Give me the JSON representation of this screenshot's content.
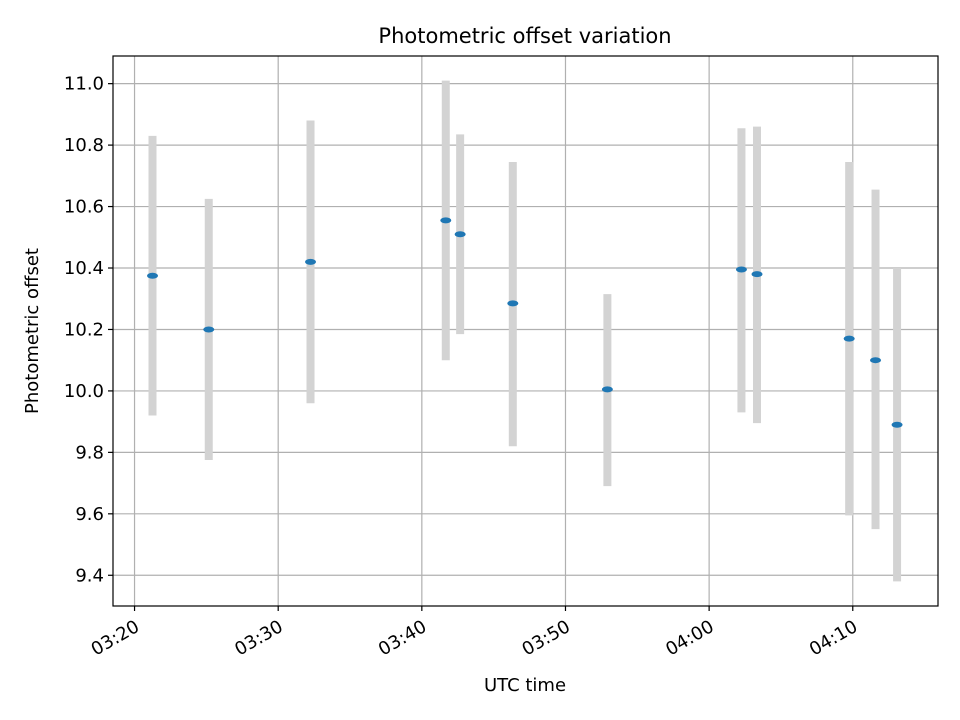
{
  "chart_data": {
    "type": "scatter",
    "title": "Photometric offset variation",
    "xlabel": "UTC time",
    "ylabel": "Photometric offset",
    "x_ticks": [
      "03:20",
      "03:30",
      "03:40",
      "03:50",
      "04:00",
      "04:10"
    ],
    "y_ticks": [
      "9.4",
      "9.6",
      "9.8",
      "10.0",
      "10.2",
      "10.4",
      "10.6",
      "10.8",
      "11.0"
    ],
    "xlim": [
      "03:18:30",
      "04:15:56"
    ],
    "ylim": [
      9.3,
      11.09
    ],
    "grid": true,
    "errorbar_color": "#d3d3d3",
    "marker_color": "#1f77b4",
    "points": [
      {
        "x": "03:21:15",
        "y": 10.375,
        "low": 9.92,
        "high": 10.83
      },
      {
        "x": "03:25:10",
        "y": 10.2,
        "low": 9.775,
        "high": 10.625
      },
      {
        "x": "03:32:15",
        "y": 10.42,
        "low": 9.96,
        "high": 10.88
      },
      {
        "x": "03:41:40",
        "y": 10.555,
        "low": 10.1,
        "high": 11.01
      },
      {
        "x": "03:42:40",
        "y": 10.51,
        "low": 10.185,
        "high": 10.835
      },
      {
        "x": "03:46:20",
        "y": 10.285,
        "low": 9.82,
        "high": 10.745
      },
      {
        "x": "03:52:55",
        "y": 10.005,
        "low": 9.69,
        "high": 10.315
      },
      {
        "x": "04:02:15",
        "y": 10.395,
        "low": 9.93,
        "high": 10.855
      },
      {
        "x": "04:03:20",
        "y": 10.38,
        "low": 9.895,
        "high": 10.86
      },
      {
        "x": "04:09:45",
        "y": 10.17,
        "low": 9.595,
        "high": 10.745
      },
      {
        "x": "04:11:35",
        "y": 10.1,
        "low": 9.55,
        "high": 10.655
      },
      {
        "x": "04:13:05",
        "y": 9.89,
        "low": 9.38,
        "high": 10.4
      }
    ]
  }
}
